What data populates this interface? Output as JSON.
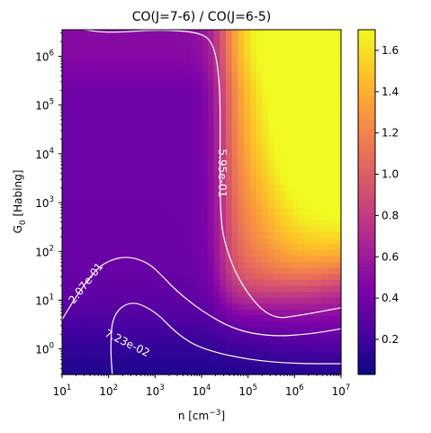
{
  "chart_data": {
    "type": "heatmap",
    "title": "CO(J=7-6) / CO(J=6-5)",
    "xlabel": "n [cm$^{-3}$]",
    "xlabel_parts": {
      "base": "n [cm",
      "sup": "−3",
      "end": "]"
    },
    "ylabel": "G$_0$ [Habing]",
    "ylabel_parts": {
      "base": "G",
      "sub": "0",
      "end": " [Habing]"
    },
    "x_scale": "log",
    "y_scale": "log",
    "xlim": [
      10,
      10000000
    ],
    "ylim": [
      0.3,
      3500000
    ],
    "x_ticks": [
      {
        "value": 10,
        "base": "10",
        "exp": "1"
      },
      {
        "value": 100,
        "base": "10",
        "exp": "2"
      },
      {
        "value": 1000,
        "base": "10",
        "exp": "3"
      },
      {
        "value": 10000,
        "base": "10",
        "exp": "4"
      },
      {
        "value": 100000,
        "base": "10",
        "exp": "5"
      },
      {
        "value": 1000000,
        "base": "10",
        "exp": "6"
      },
      {
        "value": 10000000,
        "base": "10",
        "exp": "7"
      }
    ],
    "y_ticks": [
      {
        "value": 1,
        "base": "10",
        "exp": "0"
      },
      {
        "value": 10,
        "base": "10",
        "exp": "1"
      },
      {
        "value": 100,
        "base": "10",
        "exp": "2"
      },
      {
        "value": 1000,
        "base": "10",
        "exp": "3"
      },
      {
        "value": 10000,
        "base": "10",
        "exp": "4"
      },
      {
        "value": 100000,
        "base": "10",
        "exp": "5"
      },
      {
        "value": 1000000,
        "base": "10",
        "exp": "6"
      }
    ],
    "colormap": "plasma",
    "colorbar": {
      "range": [
        0.03,
        1.7
      ],
      "ticks": [
        0.2,
        0.4,
        0.6,
        0.8,
        1.0,
        1.2,
        1.4,
        1.6
      ],
      "tick_labels": [
        "0.2",
        "0.4",
        "0.6",
        "0.8",
        "1.0",
        "1.2",
        "1.4",
        "1.6"
      ]
    },
    "contours": [
      {
        "level": 0.0723,
        "label": "7.23e-02",
        "points": [
          [
            120,
            0.3
          ],
          [
            110,
            1.0
          ],
          [
            120,
            5
          ],
          [
            300,
            10
          ],
          [
            1000,
            6
          ],
          [
            3000,
            2
          ],
          [
            10000,
            1
          ],
          [
            100000,
            0.6
          ],
          [
            1000000,
            0.5
          ],
          [
            10000000,
            0.5
          ]
        ]
      },
      {
        "level": 0.207,
        "label": "2.07e-01",
        "points": [
          [
            10,
            4
          ],
          [
            20,
            12
          ],
          [
            50,
            40
          ],
          [
            100,
            65
          ],
          [
            250,
            80
          ],
          [
            700,
            60
          ],
          [
            1500,
            30
          ],
          [
            3000,
            15
          ],
          [
            10000,
            6
          ],
          [
            50000,
            2.5
          ],
          [
            300000,
            1.8
          ],
          [
            2000000,
            2.0
          ],
          [
            10000000,
            2.6
          ]
        ]
      },
      {
        "level": 0.595,
        "label": "5.95e-01",
        "points": [
          [
            30,
            3500000
          ],
          [
            100,
            3000000
          ],
          [
            1000,
            3500000
          ],
          [
            8000,
            3200000
          ],
          [
            18000,
            2000000
          ],
          [
            25000,
            300000
          ],
          [
            25000,
            10000
          ],
          [
            25000,
            800
          ],
          [
            30000,
            150
          ],
          [
            70000,
            20
          ],
          [
            300000,
            4
          ],
          [
            1500000,
            5
          ],
          [
            10000000,
            7
          ]
        ]
      }
    ],
    "grid": false
  }
}
